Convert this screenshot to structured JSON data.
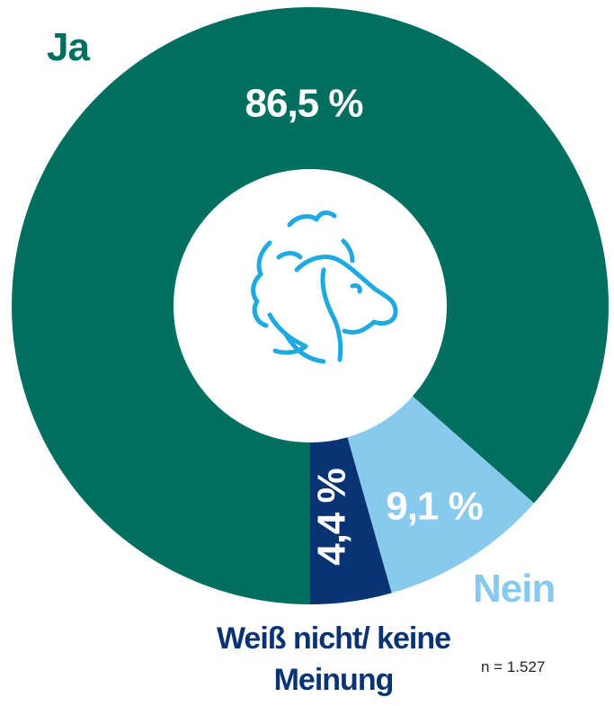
{
  "chart_data": {
    "type": "donut",
    "categories": [
      "Ja",
      "Nein",
      "Weiß nicht/ keine Meinung"
    ],
    "values": [
      86.5,
      9.1,
      4.4
    ],
    "value_labels": [
      "86,5 %",
      "9,1 %",
      "4,4 %"
    ],
    "colors": [
      "#006f5f",
      "#88c9ee",
      "#0a3373"
    ],
    "annotation": "n = 1.527"
  }
}
